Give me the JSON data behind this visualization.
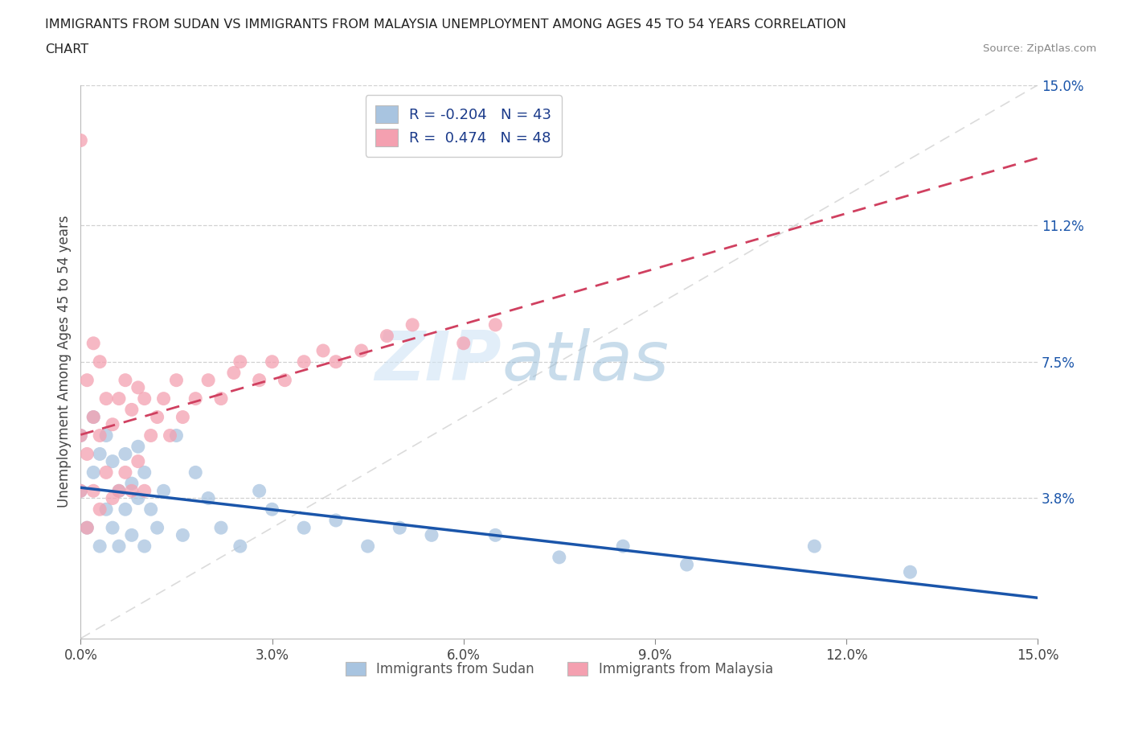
{
  "title_line1": "IMMIGRANTS FROM SUDAN VS IMMIGRANTS FROM MALAYSIA UNEMPLOYMENT AMONG AGES 45 TO 54 YEARS CORRELATION",
  "title_line2": "CHART",
  "source_text": "Source: ZipAtlas.com",
  "ylabel": "Unemployment Among Ages 45 to 54 years",
  "xlim": [
    0.0,
    0.15
  ],
  "ylim": [
    0.0,
    0.15
  ],
  "xtick_vals": [
    0.0,
    0.03,
    0.06,
    0.09,
    0.12,
    0.15
  ],
  "xtick_labels": [
    "0.0%",
    "3.0%",
    "6.0%",
    "9.0%",
    "12.0%",
    "15.0%"
  ],
  "ytick_vals": [
    0.038,
    0.075,
    0.112,
    0.15
  ],
  "ytick_labels": [
    "3.8%",
    "7.5%",
    "11.2%",
    "15.0%"
  ],
  "sudan_color": "#a8c4e0",
  "malaysia_color": "#f4a0b0",
  "sudan_line_color": "#1a55aa",
  "malaysia_line_color": "#d04060",
  "sudan_R": -0.204,
  "sudan_N": 43,
  "malaysia_R": 0.474,
  "malaysia_N": 48,
  "watermark_zip": "ZIP",
  "watermark_atlas": "atlas",
  "legend_label_sudan": "Immigrants from Sudan",
  "legend_label_malaysia": "Immigrants from Malaysia",
  "sudan_points_x": [
    0.0,
    0.0,
    0.001,
    0.002,
    0.002,
    0.003,
    0.003,
    0.004,
    0.004,
    0.005,
    0.005,
    0.006,
    0.006,
    0.007,
    0.007,
    0.008,
    0.008,
    0.009,
    0.009,
    0.01,
    0.01,
    0.011,
    0.012,
    0.013,
    0.015,
    0.016,
    0.018,
    0.02,
    0.022,
    0.025,
    0.028,
    0.03,
    0.035,
    0.04,
    0.045,
    0.05,
    0.055,
    0.065,
    0.075,
    0.085,
    0.095,
    0.115,
    0.13
  ],
  "sudan_points_y": [
    0.04,
    0.055,
    0.03,
    0.045,
    0.06,
    0.025,
    0.05,
    0.035,
    0.055,
    0.03,
    0.048,
    0.025,
    0.04,
    0.035,
    0.05,
    0.028,
    0.042,
    0.038,
    0.052,
    0.025,
    0.045,
    0.035,
    0.03,
    0.04,
    0.055,
    0.028,
    0.045,
    0.038,
    0.03,
    0.025,
    0.04,
    0.035,
    0.03,
    0.032,
    0.025,
    0.03,
    0.028,
    0.028,
    0.022,
    0.025,
    0.02,
    0.025,
    0.018
  ],
  "malaysia_points_x": [
    0.0,
    0.0,
    0.0,
    0.001,
    0.001,
    0.001,
    0.002,
    0.002,
    0.002,
    0.003,
    0.003,
    0.003,
    0.004,
    0.004,
    0.005,
    0.005,
    0.006,
    0.006,
    0.007,
    0.007,
    0.008,
    0.008,
    0.009,
    0.009,
    0.01,
    0.01,
    0.011,
    0.012,
    0.013,
    0.014,
    0.015,
    0.016,
    0.018,
    0.02,
    0.022,
    0.024,
    0.025,
    0.028,
    0.03,
    0.032,
    0.035,
    0.038,
    0.04,
    0.044,
    0.048,
    0.052,
    0.06,
    0.065
  ],
  "malaysia_points_y": [
    0.04,
    0.055,
    0.135,
    0.03,
    0.05,
    0.07,
    0.04,
    0.06,
    0.08,
    0.035,
    0.055,
    0.075,
    0.045,
    0.065,
    0.038,
    0.058,
    0.04,
    0.065,
    0.045,
    0.07,
    0.04,
    0.062,
    0.048,
    0.068,
    0.04,
    0.065,
    0.055,
    0.06,
    0.065,
    0.055,
    0.07,
    0.06,
    0.065,
    0.07,
    0.065,
    0.072,
    0.075,
    0.07,
    0.075,
    0.07,
    0.075,
    0.078,
    0.075,
    0.078,
    0.082,
    0.085,
    0.08,
    0.085
  ],
  "background_color": "#ffffff",
  "grid_color": "#cccccc"
}
